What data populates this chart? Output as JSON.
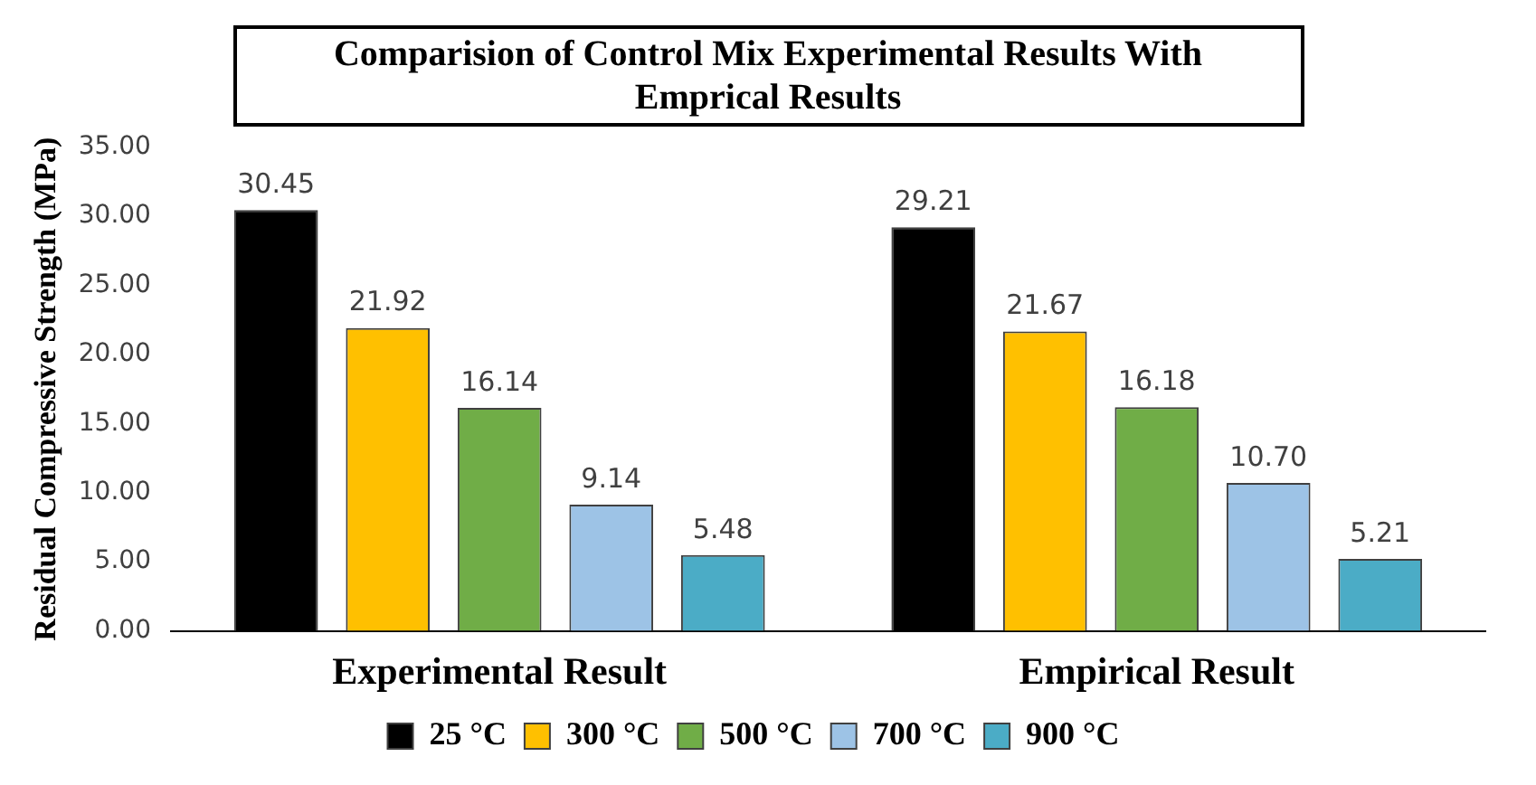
{
  "chart_data": {
    "type": "bar",
    "title": "Comparision of Control Mix Experimental Results With Emprical Results",
    "ylabel": "Residual Compressive Strength (MPa)",
    "categories": [
      "Experimental Result",
      "Empirical Result"
    ],
    "series": [
      {
        "name": "25 °C",
        "color": "#000000",
        "values": [
          30.45,
          29.21
        ],
        "value_labels": [
          "30.45",
          "29.21"
        ]
      },
      {
        "name": "300 °C",
        "color": "#ffc000",
        "values": [
          21.92,
          21.67
        ],
        "value_labels": [
          "21.92",
          "21.67"
        ]
      },
      {
        "name": "500 °C",
        "color": "#70ad47",
        "values": [
          16.14,
          16.18
        ],
        "value_labels": [
          "16.14",
          "16.18"
        ]
      },
      {
        "name": "700 °C",
        "color": "#9dc3e6",
        "values": [
          9.14,
          10.7
        ],
        "value_labels": [
          "9.14",
          "10.70"
        ]
      },
      {
        "name": "900 °C",
        "color": "#4bacc6",
        "values": [
          5.48,
          5.21
        ],
        "value_labels": [
          "5.48",
          "5.21"
        ]
      }
    ],
    "ylim": [
      0,
      35
    ],
    "yticks": [
      {
        "value": 0,
        "label": "0.00"
      },
      {
        "value": 5,
        "label": "5.00"
      },
      {
        "value": 10,
        "label": "10.00"
      },
      {
        "value": 15,
        "label": "15.00"
      },
      {
        "value": 20,
        "label": "20.00"
      },
      {
        "value": 25,
        "label": "25.00"
      },
      {
        "value": 30,
        "label": "30.00"
      },
      {
        "value": 35,
        "label": "35.00"
      }
    ],
    "grid": false,
    "legend": "bottom"
  }
}
